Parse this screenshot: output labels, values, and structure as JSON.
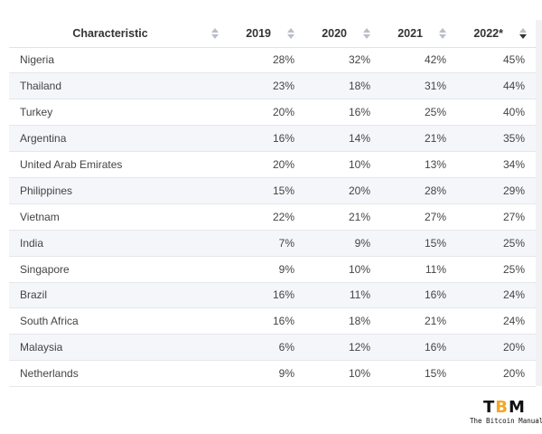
{
  "table": {
    "headers": [
      "Characteristic",
      "2019",
      "2020",
      "2021",
      "2022*"
    ],
    "rows": [
      {
        "country": "Nigeria",
        "values": [
          "28%",
          "32%",
          "42%",
          "45%"
        ]
      },
      {
        "country": "Thailand",
        "values": [
          "23%",
          "18%",
          "31%",
          "44%"
        ]
      },
      {
        "country": "Turkey",
        "values": [
          "20%",
          "16%",
          "25%",
          "40%"
        ]
      },
      {
        "country": "Argentina",
        "values": [
          "16%",
          "14%",
          "21%",
          "35%"
        ]
      },
      {
        "country": "United Arab Emirates",
        "values": [
          "20%",
          "10%",
          "13%",
          "34%"
        ]
      },
      {
        "country": "Philippines",
        "values": [
          "15%",
          "20%",
          "28%",
          "29%"
        ]
      },
      {
        "country": "Vietnam",
        "values": [
          "22%",
          "21%",
          "27%",
          "27%"
        ]
      },
      {
        "country": "India",
        "values": [
          "7%",
          "9%",
          "15%",
          "25%"
        ]
      },
      {
        "country": "Singapore",
        "values": [
          "9%",
          "10%",
          "11%",
          "25%"
        ]
      },
      {
        "country": "Brazil",
        "values": [
          "16%",
          "11%",
          "16%",
          "24%"
        ]
      },
      {
        "country": "South Africa",
        "values": [
          "16%",
          "18%",
          "21%",
          "24%"
        ]
      },
      {
        "country": "Malaysia",
        "values": [
          "6%",
          "12%",
          "16%",
          "20%"
        ]
      },
      {
        "country": "Netherlands",
        "values": [
          "9%",
          "10%",
          "15%",
          "20%"
        ]
      }
    ],
    "sort_column": "2022*",
    "sort_direction": "descending"
  },
  "logo": {
    "mark": "TBM",
    "tagline": "The Bitcoin Manual"
  },
  "colors": {
    "header_border": "#dfe3e8",
    "row_alt_bg": "#f4f6fa",
    "sort_inactive": "#b8bfc8",
    "sort_active": "#333333",
    "logo_accent": "#f5a623"
  }
}
